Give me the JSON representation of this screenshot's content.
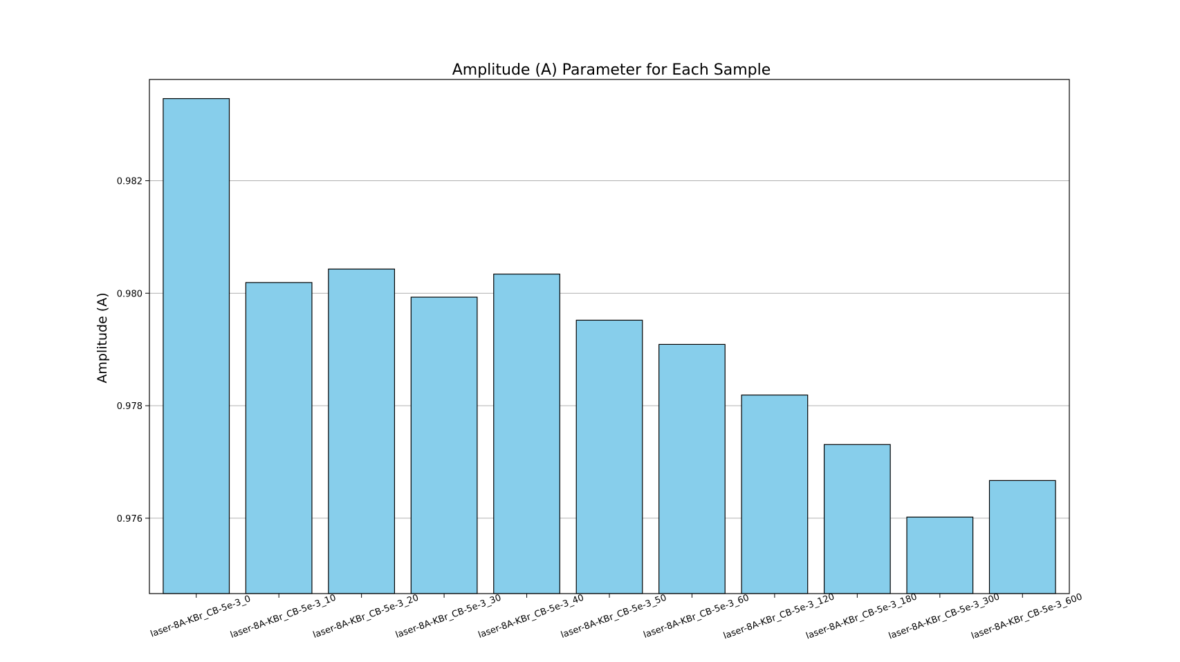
{
  "chart_data": {
    "type": "bar",
    "title": "Amplitude (A) Parameter for Each Sample",
    "xlabel": "",
    "ylabel": "Amplitude (A)",
    "categories": [
      "laser-8A-KBr_CB-5e-3_0",
      "laser-8A-KBr_CB-5e-3_10",
      "laser-8A-KBr_CB-5e-3_20",
      "laser-8A-KBr_CB-5e-3_30",
      "laser-8A-KBr_CB-5e-3_40",
      "laser-8A-KBr_CB-5e-3_50",
      "laser-8A-KBr_CB-5e-3_60",
      "laser-8A-KBr_CB-5e-3_120",
      "laser-8A-KBr_CB-5e-3_180",
      "laser-8A-KBr_CB-5e-3_300",
      "laser-8A-KBr_CB-5e-3_600"
    ],
    "values": [
      0.98346,
      0.98019,
      0.98043,
      0.97993,
      0.98034,
      0.97952,
      0.97909,
      0.97819,
      0.97731,
      0.97602,
      0.97667
    ],
    "ylim": [
      0.97466,
      0.9838
    ],
    "yticks": [
      0.976,
      0.978,
      0.98,
      0.982
    ],
    "ytick_labels": [
      "0.976",
      "0.978",
      "0.980",
      "0.982"
    ],
    "grid": "y",
    "bar_color": "#87ceeb",
    "edge_color": "#000000"
  }
}
